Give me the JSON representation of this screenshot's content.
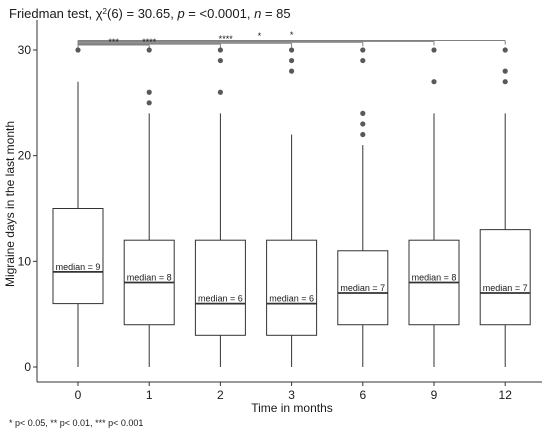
{
  "chart_data": {
    "type": "box",
    "title": "Friedman test, χ²(6) = 30.65, p = <0.0001, n = 85",
    "title_parts": {
      "prefix": "Friedman test, ",
      "chi": "χ",
      "chi_sup": "2",
      "stat": "(6) = 30.65, ",
      "p_label": "p",
      "p_value": " = <0.0001, ",
      "n_label": "n",
      "n_value": " = 85"
    },
    "xlabel": "Time in months",
    "ylabel": "Migraine days in the last month",
    "ylim": [
      0,
      31
    ],
    "y_ticks": [
      0,
      10,
      20,
      30
    ],
    "grid": false,
    "footnote": "* p< 0.05, ** p< 0.01, *** p< 0.001",
    "categories": [
      "0",
      "1",
      "2",
      "3",
      "6",
      "9",
      "12"
    ],
    "boxes": [
      {
        "x": "0",
        "whisker_low": 0,
        "q1": 6,
        "median": 9,
        "q3": 15,
        "whisker_high": 27,
        "median_label": "median = 9",
        "outliers": [
          30
        ]
      },
      {
        "x": "1",
        "whisker_low": 0,
        "q1": 4,
        "median": 8,
        "q3": 12,
        "whisker_high": 24,
        "median_label": "median = 8",
        "outliers": [
          25,
          26,
          30
        ]
      },
      {
        "x": "2",
        "whisker_low": 0,
        "q1": 3,
        "median": 6,
        "q3": 12,
        "whisker_high": 24,
        "median_label": "median = 6",
        "outliers": [
          26,
          29,
          30
        ]
      },
      {
        "x": "3",
        "whisker_low": 0,
        "q1": 3,
        "median": 6,
        "q3": 12,
        "whisker_high": 22,
        "median_label": "median = 6",
        "outliers": [
          28,
          29,
          30
        ]
      },
      {
        "x": "6",
        "whisker_low": 0,
        "q1": 4,
        "median": 7,
        "q3": 11,
        "whisker_high": 21,
        "median_label": "median = 7",
        "outliers": [
          22,
          23,
          24,
          29,
          30
        ]
      },
      {
        "x": "9",
        "whisker_low": 0,
        "q1": 4,
        "median": 8,
        "q3": 12,
        "whisker_high": 24,
        "median_label": "median = 8",
        "outliers": [
          27,
          30
        ]
      },
      {
        "x": "12",
        "whisker_low": 0,
        "q1": 4,
        "median": 7,
        "q3": 13,
        "whisker_high": 24,
        "median_label": "median = 7",
        "outliers": [
          27,
          28,
          30
        ]
      }
    ],
    "comparisons": {
      "baseline": "0",
      "targets": [
        "1",
        "2",
        "3",
        "6",
        "9",
        "12"
      ],
      "stars": [
        {
          "x": 0.5,
          "text": "***"
        },
        {
          "x": 1.0,
          "text": "****"
        },
        {
          "x": 2.0,
          "text": "*"
        },
        {
          "x": 2.1,
          "text": "***"
        },
        {
          "x": 2.55,
          "text": "*"
        },
        {
          "x": 3.0,
          "text": "*"
        }
      ]
    },
    "colors": {
      "box_fill": "#ffffff",
      "box_stroke": "#333333",
      "outlier": "#595959",
      "bracket": "#808080",
      "axis": "#333333"
    }
  }
}
